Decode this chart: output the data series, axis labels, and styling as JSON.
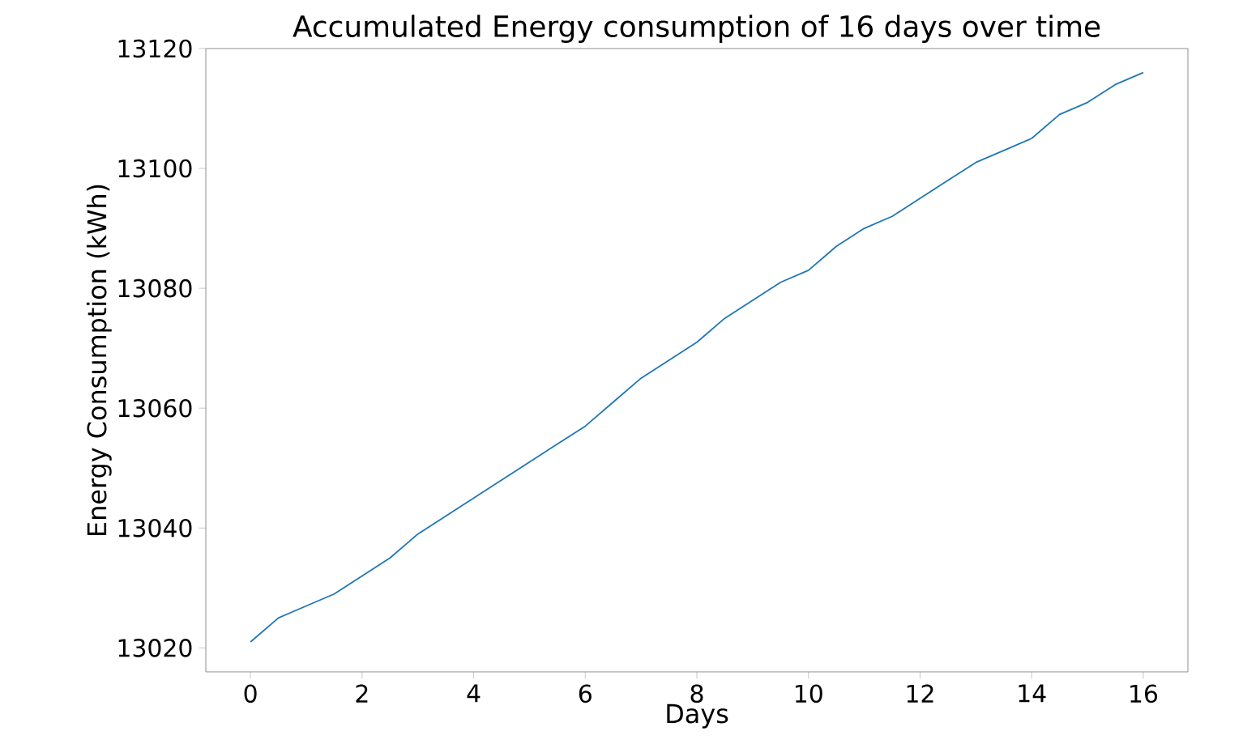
{
  "chart_data": {
    "type": "line",
    "title": "Accumulated Energy consumption of 16 days over time",
    "xlabel": "Days",
    "ylabel": "Energy Consumption (kWh)",
    "x": [
      0,
      0.5,
      1,
      1.5,
      2,
      2.5,
      3,
      3.5,
      4,
      4.5,
      5,
      5.5,
      6,
      6.5,
      7,
      7.5,
      8,
      8.5,
      9,
      9.5,
      10,
      10.5,
      11,
      11.5,
      12,
      12.5,
      13,
      13.5,
      14,
      14.5,
      15,
      15.5,
      16
    ],
    "series": [
      {
        "color": "#1f77b4",
        "values": [
          13021,
          13025,
          13027,
          13029,
          13032,
          13035,
          13039,
          13042,
          13045,
          13048,
          13051,
          13054,
          13057,
          13061,
          13065,
          13068,
          13071,
          13075,
          13078,
          13081,
          13083,
          13087,
          13090,
          13092,
          13095,
          13098,
          13101,
          13103,
          13105,
          13109,
          13111,
          13114,
          13116
        ]
      }
    ],
    "xlim": [
      -0.8,
      16.8
    ],
    "ylim": [
      13016,
      13120
    ],
    "xticks": [
      0,
      2,
      4,
      6,
      8,
      10,
      12,
      14,
      16
    ],
    "yticks": [
      13020,
      13040,
      13060,
      13080,
      13100,
      13120
    ]
  }
}
